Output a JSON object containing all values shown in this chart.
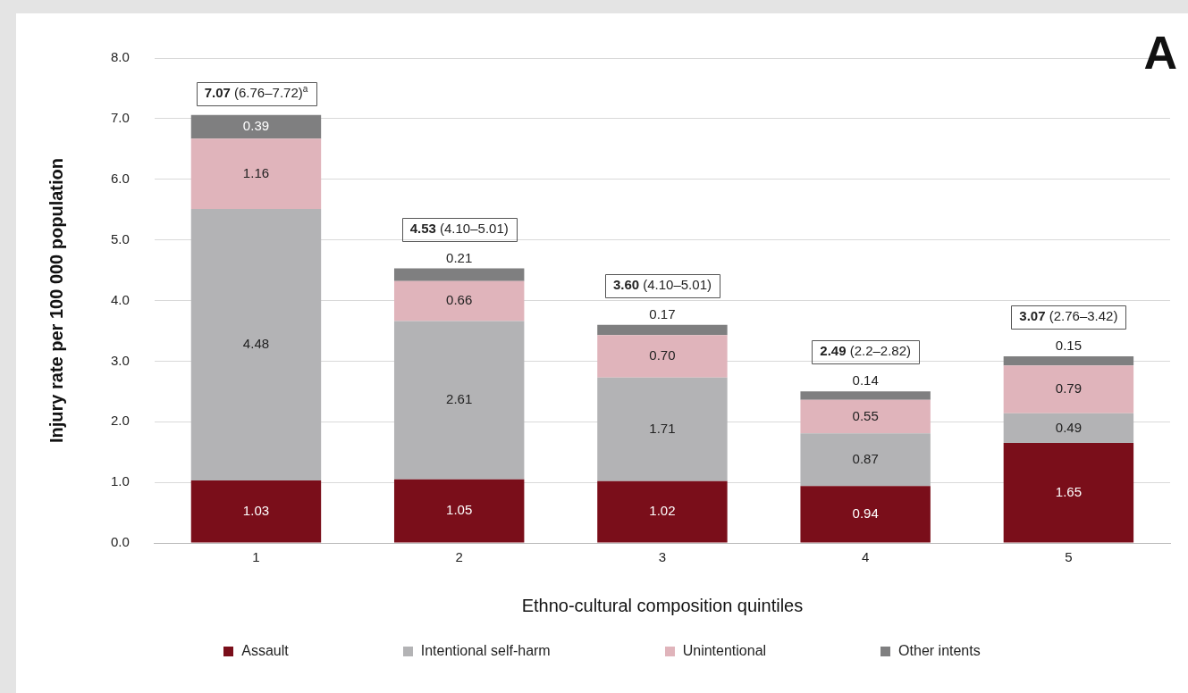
{
  "chart_data": {
    "type": "bar",
    "stacked": true,
    "xlabel": "Ethno-cultural composition quintiles",
    "ylabel": "Injury rate per 100 000 population",
    "categories": [
      "1",
      "2",
      "3",
      "4",
      "5"
    ],
    "series": [
      {
        "name": "Assault",
        "color": "#7a0e1a",
        "values": [
          1.03,
          1.05,
          1.02,
          0.94,
          1.65
        ],
        "value_labels": [
          "1.03",
          "1.05",
          "1.02",
          "0.94",
          "1.65"
        ]
      },
      {
        "name": "Intentional self-harm",
        "color": "#b3b3b5",
        "values": [
          4.48,
          2.61,
          1.71,
          0.87,
          0.49
        ],
        "value_labels": [
          "4.48",
          "2.61",
          "1.71",
          "0.87",
          "0.49"
        ]
      },
      {
        "name": "Unintentional",
        "color": "#e0b4bb",
        "values": [
          1.16,
          0.66,
          0.7,
          0.55,
          0.79
        ],
        "value_labels": [
          "1.16",
          "0.66",
          "0.70",
          "0.55",
          "0.79"
        ]
      },
      {
        "name": "Other intents",
        "color": "#7f7f80",
        "values": [
          0.39,
          0.21,
          0.17,
          0.14,
          0.15
        ],
        "value_labels": [
          "0.39",
          "0.21",
          "0.17",
          "0.14",
          "0.15"
        ]
      }
    ],
    "totals": [
      "7.07 (6.76–7.72)$^{a}$",
      "4.53 (4.10–5.01)",
      "3.60 (4.10–5.01)",
      "2.49 (2.2–2.82)",
      "3.07 (2.76–3.42)"
    ],
    "ylim": [
      0,
      8
    ],
    "yticks": [
      {
        "value": 0,
        "label": "0.0"
      },
      {
        "value": 1,
        "label": "1.0"
      },
      {
        "value": 2,
        "label": "2.0"
      },
      {
        "value": 3,
        "label": "3.0"
      },
      {
        "value": 4,
        "label": "4.0"
      },
      {
        "value": 5,
        "label": "5.0"
      },
      {
        "value": 6,
        "label": "6.0"
      },
      {
        "value": 7,
        "label": "7.0"
      },
      {
        "value": 8,
        "label": "8.0"
      }
    ],
    "grid": "y",
    "legend": "bottom",
    "annotations": [
      "A"
    ]
  }
}
